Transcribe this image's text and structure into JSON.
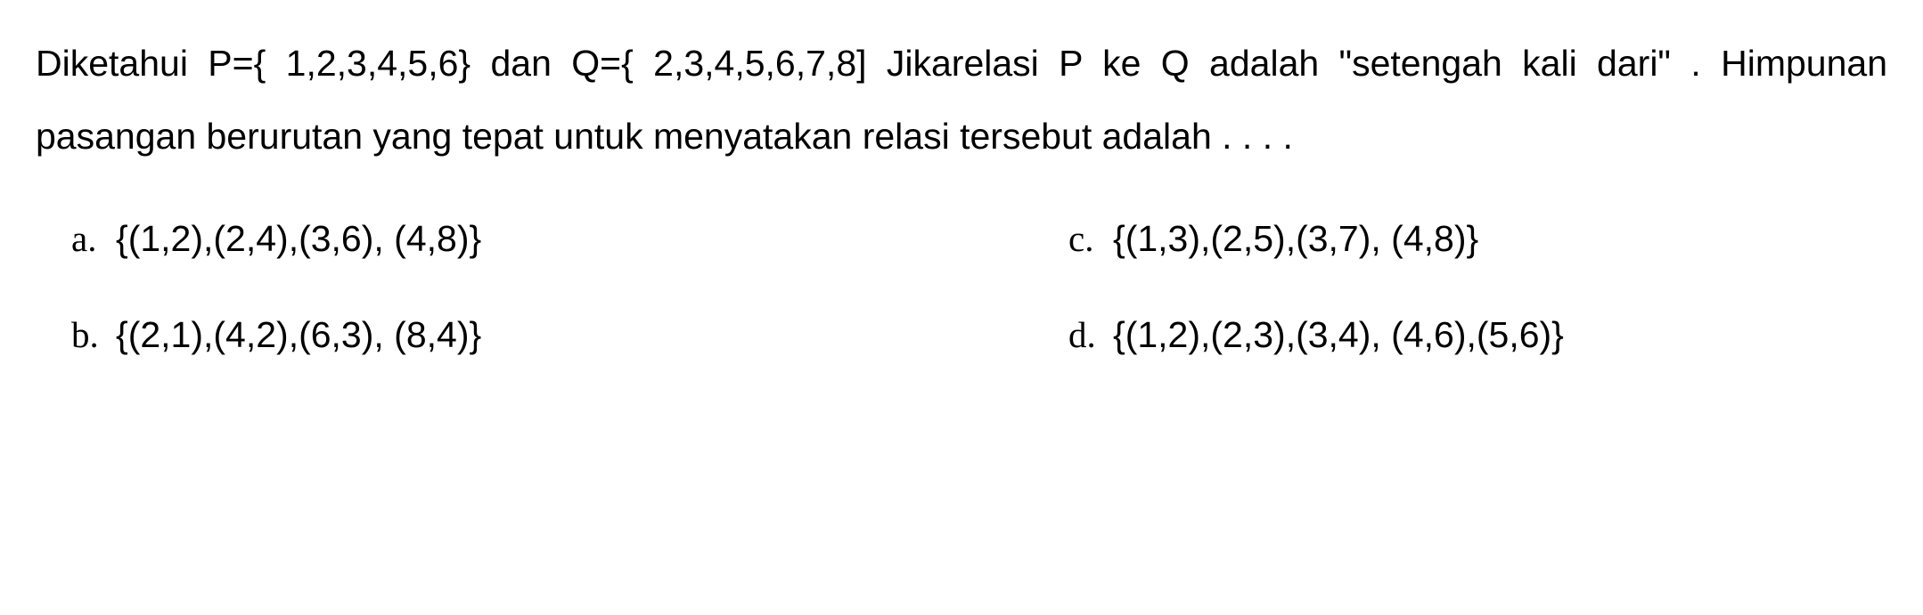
{
  "question": {
    "text": "Diketahui P={ 1,2,3,4,5,6} dan Q={ 2,3,4,5,6,7,8] Jikarelasi P ke Q adalah \"setengah kali dari\" . Himpunan pasangan berurutan yang tepat untuk menyatakan relasi tersebut adalah . . . .",
    "fontsize": 41,
    "color": "#000000",
    "background_color": "#ffffff"
  },
  "options": {
    "a": {
      "letter": "a.",
      "text": "{(1,2),(2,4),(3,6), (4,8)}"
    },
    "b": {
      "letter": "b.",
      "text": "{(2,1),(4,2),(6,3), (8,4)}"
    },
    "c": {
      "letter": "c.",
      "text": "{(1,3),(2,5),(3,7), (4,8)}"
    },
    "d": {
      "letter": "d.",
      "text": "{(1,2),(2,3),(3,4), (4,6),(5,6)}"
    }
  },
  "layout": {
    "letter_font": "serif",
    "option_font": "sans-serif",
    "option_fontsize": 41
  }
}
